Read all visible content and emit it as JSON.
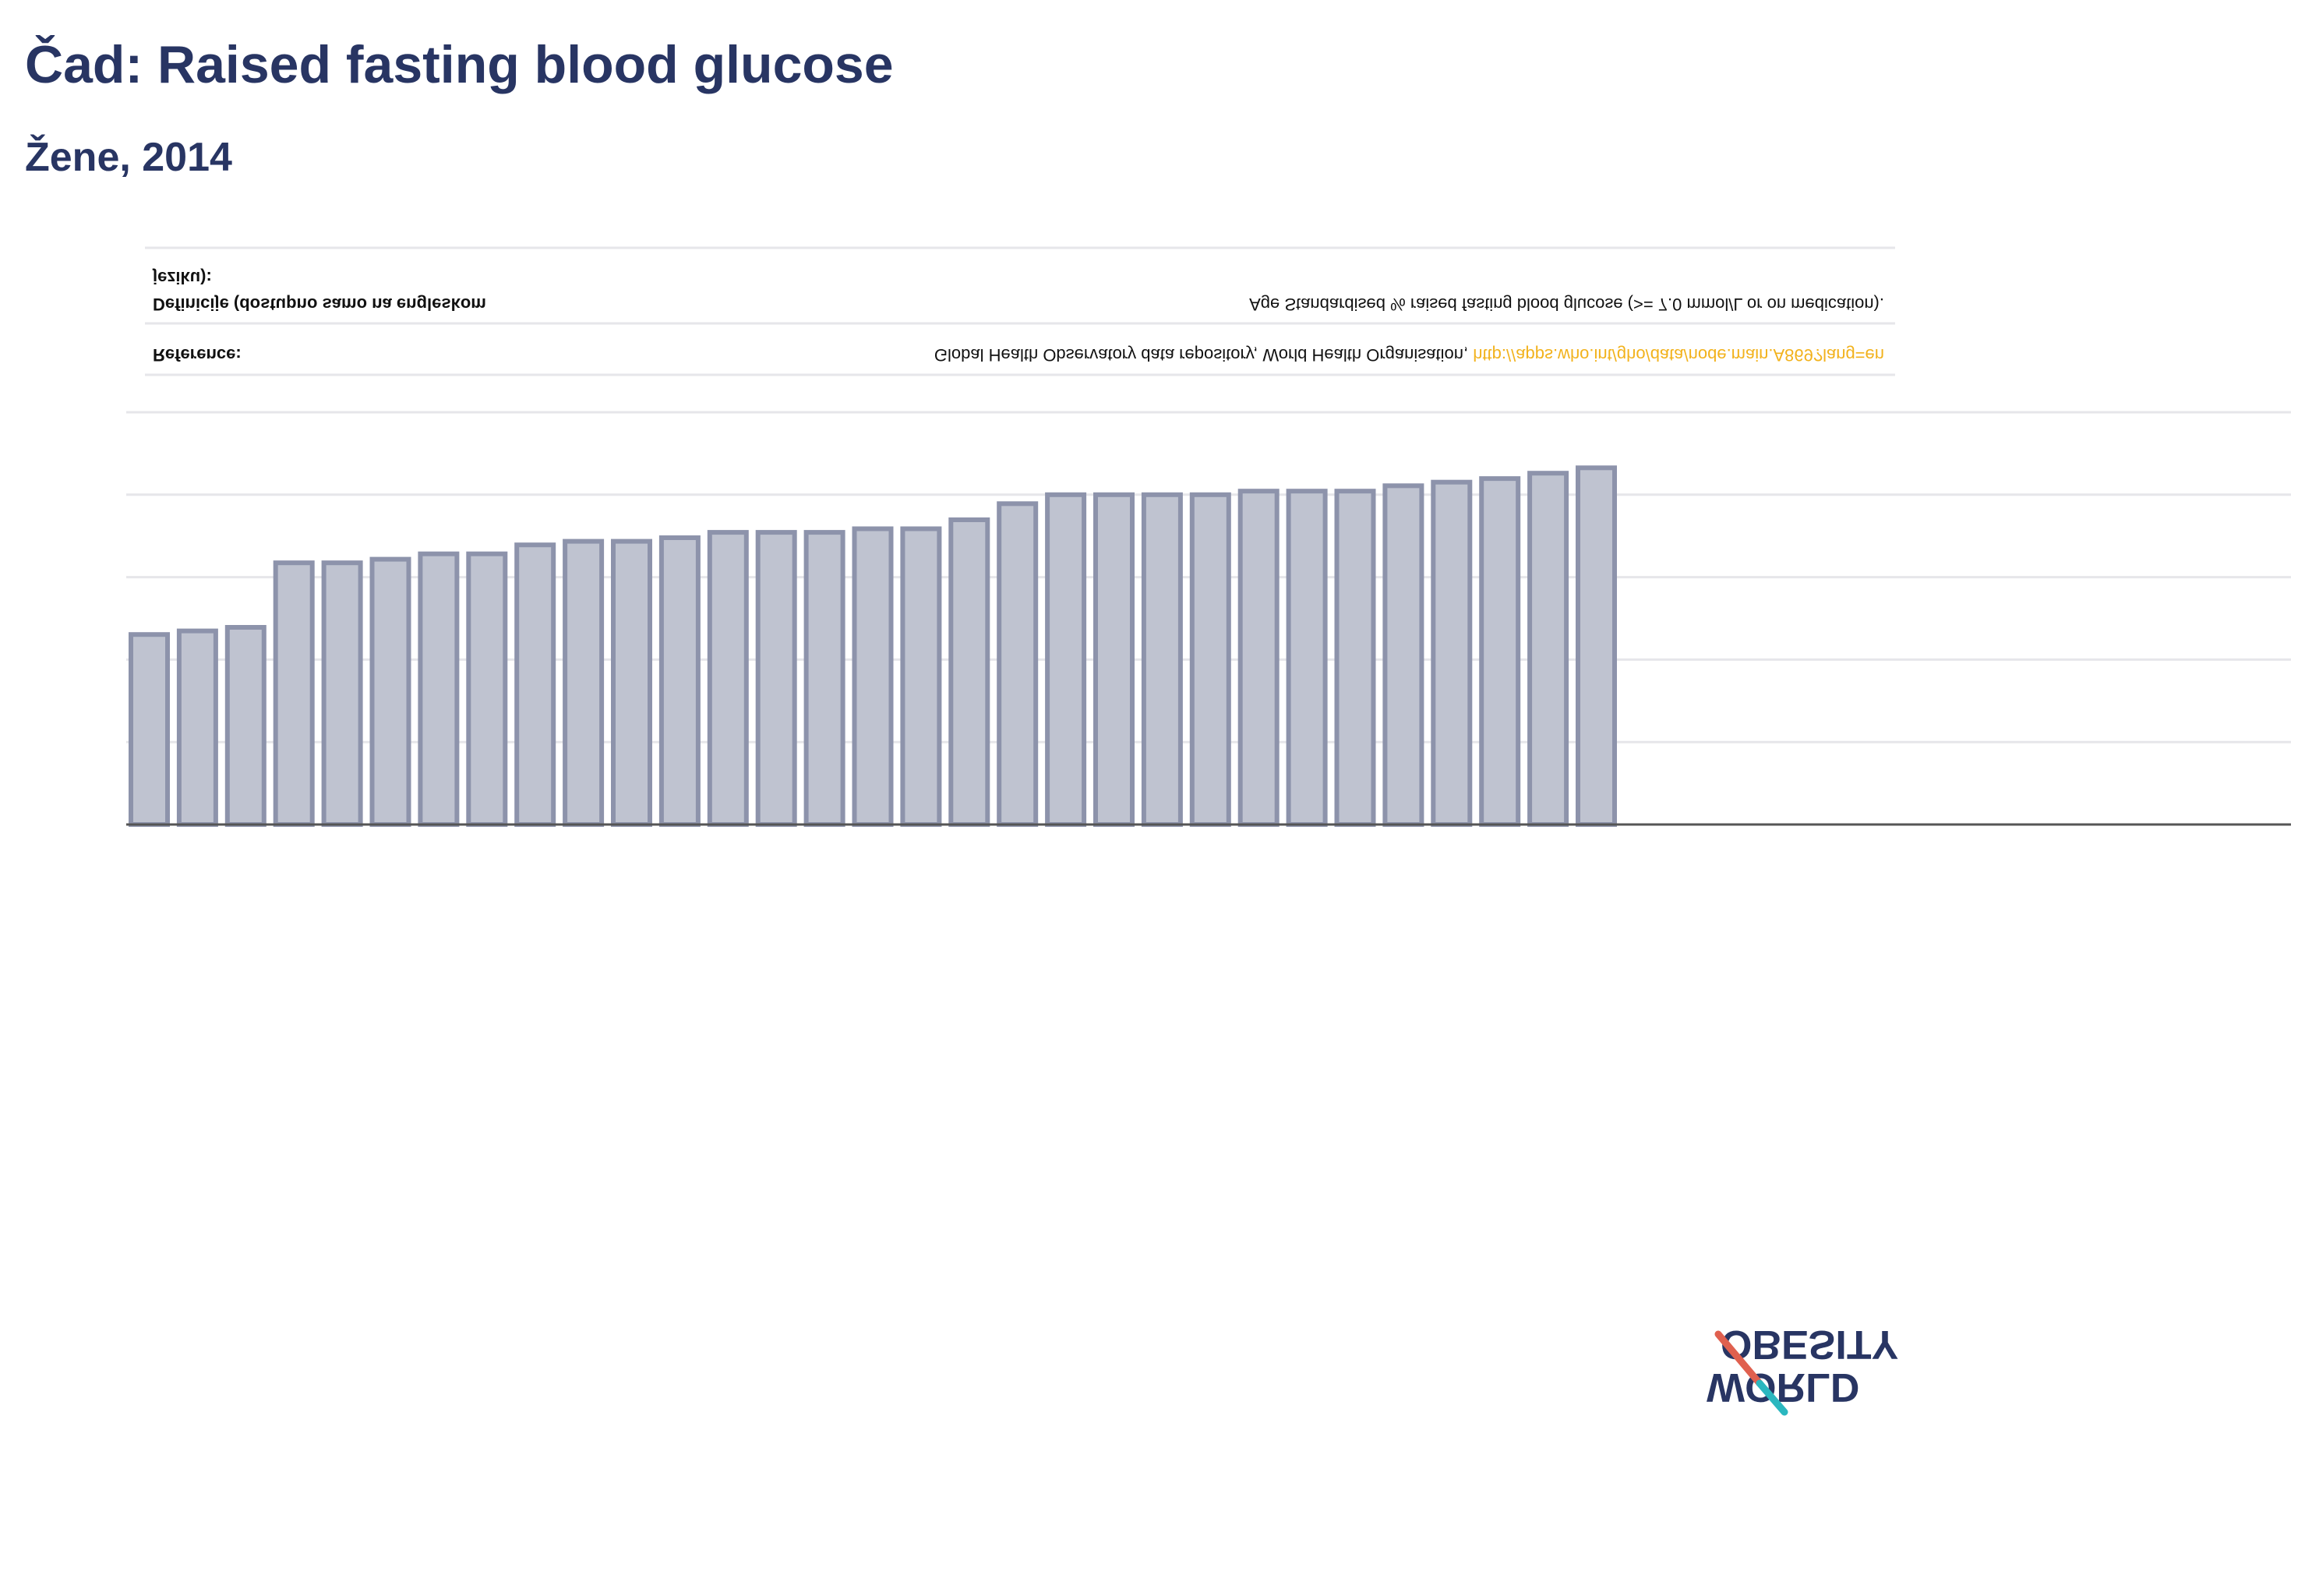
{
  "header": {
    "title": "Čad: Raised fasting blood glucose",
    "subtitle": "Žene, 2014"
  },
  "reference_table": {
    "definition_label_line1": "Definicije (dostupno samo na engleskom",
    "definition_label_line2": "jeziku):",
    "definition_text": "Age Standardised % raised fasting blood glucose (>= 7.0 mmol/L or on medication).",
    "reference_label": "Reference:",
    "reference_text": "Global Health Observatory data repository, World Health Organisation, ",
    "reference_link": "http://apps.who.int/gho/data/node.main.A869?lang=en"
  },
  "logo": {
    "line1": "OBESITY",
    "line2": "WORLD"
  },
  "colors": {
    "title": "#283563",
    "bar_fill": "#bfc3d0",
    "bar_stroke": "#8d93ab",
    "axis": "#555555",
    "grid": "#e6e6ea",
    "link": "#f2b21c",
    "logo_red": "#e0604f",
    "logo_teal": "#2bb7bf"
  },
  "chart_data": {
    "type": "bar",
    "title": "Čad: Raised fasting blood glucose",
    "subtitle": "Žene, 2014",
    "orientation": "vertical, mirrored (rendered upside-down)",
    "xlabel": "",
    "ylabel": "",
    "ylim": [
      0,
      10
    ],
    "grid": true,
    "legend": "none",
    "values": [
      5.3,
      5.4,
      5.5,
      7.3,
      7.3,
      7.4,
      7.55,
      7.55,
      7.8,
      7.9,
      7.9,
      8.0,
      8.15,
      8.15,
      8.15,
      8.25,
      8.25,
      8.5,
      8.95,
      9.2,
      9.2,
      9.2,
      9.2,
      9.3,
      9.3,
      9.3,
      9.45,
      9.55,
      9.65,
      9.8,
      9.95
    ]
  }
}
